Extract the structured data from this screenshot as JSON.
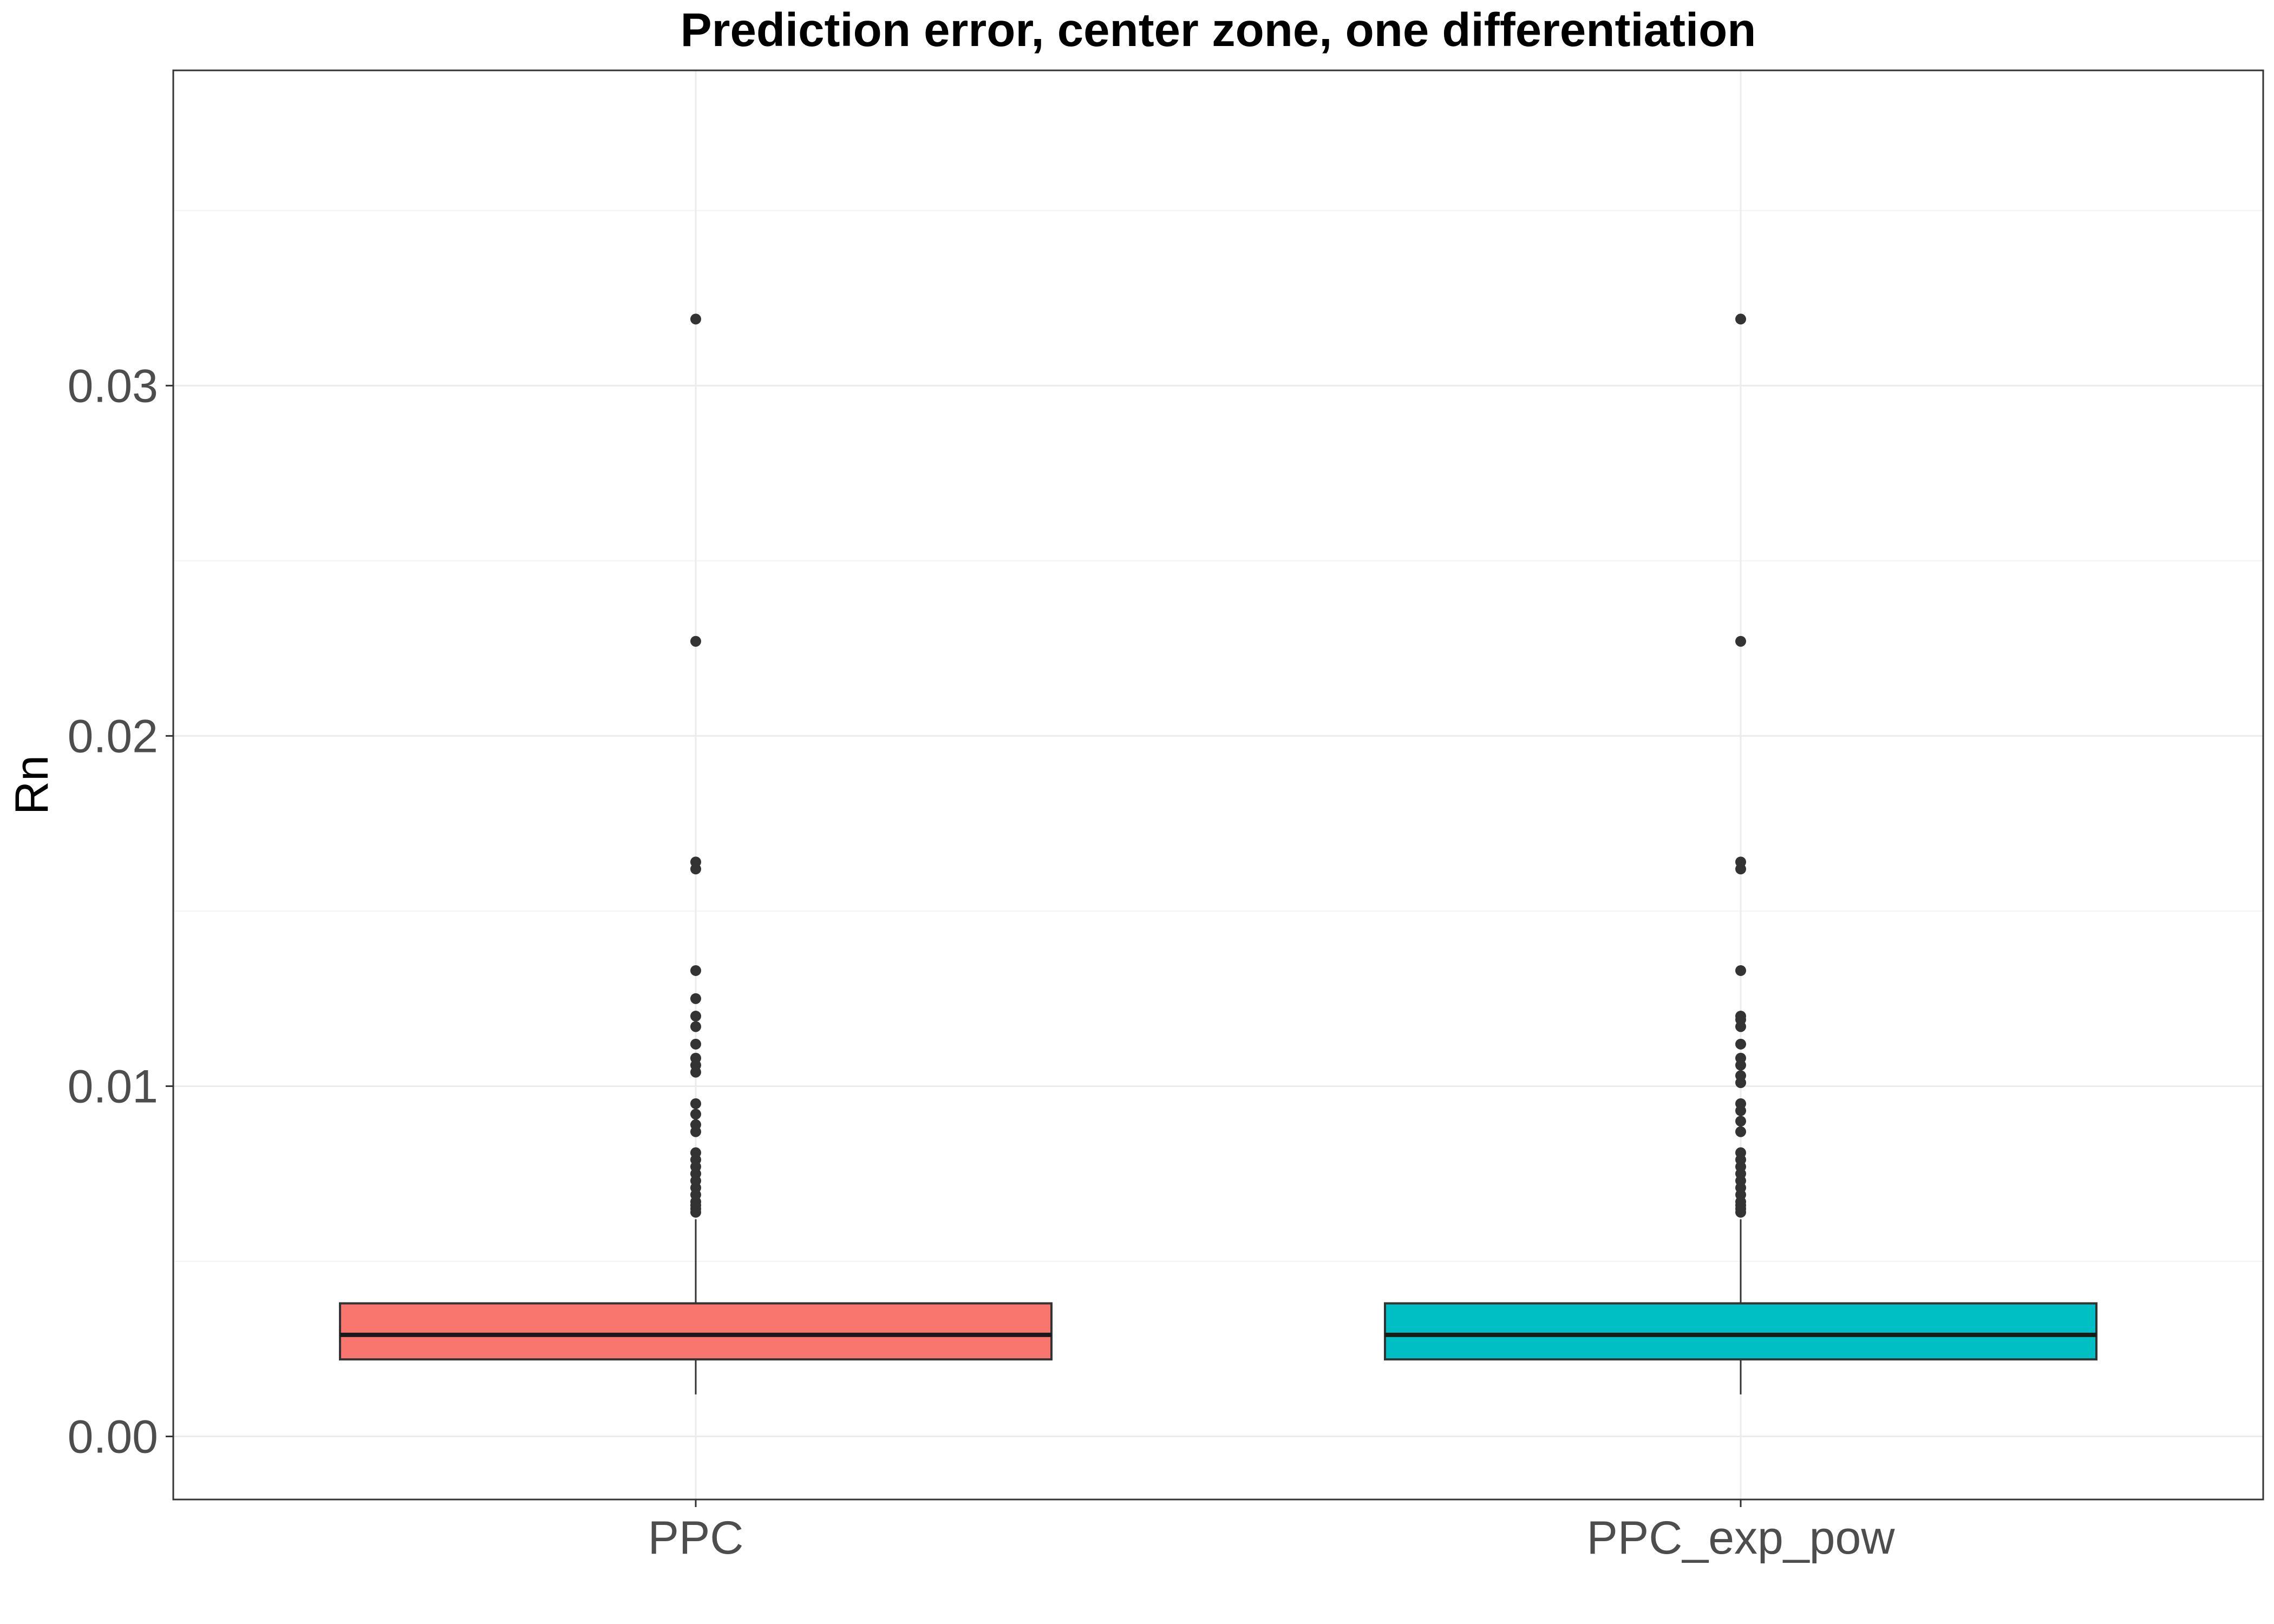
{
  "chart_data": {
    "type": "box",
    "title": "Prediction error, center zone, one differentiation",
    "xlabel": "",
    "ylabel": "Rn",
    "categories": [
      "PPC",
      "PPC_exp_pow"
    ],
    "ylim": [
      -0.0018,
      0.039
    ],
    "y_ticks": [
      0.0,
      0.01,
      0.02,
      0.03
    ],
    "y_tick_labels": [
      "0.00",
      "0.01",
      "0.02",
      "0.03"
    ],
    "grid": true,
    "legend": "none",
    "series": [
      {
        "category": "PPC",
        "color": "#F8766D",
        "whisker_low": 0.0012,
        "q1": 0.0022,
        "median": 0.0029,
        "q3": 0.0038,
        "whisker_high": 0.0062,
        "outliers": [
          0.0319,
          0.0227,
          0.0164,
          0.0162,
          0.0133,
          0.0125,
          0.012,
          0.0117,
          0.0112,
          0.0108,
          0.0106,
          0.0104,
          0.0095,
          0.0092,
          0.0089,
          0.0087,
          0.0081,
          0.0079,
          0.0077,
          0.0075,
          0.0073,
          0.0071,
          0.0069,
          0.0067,
          0.0066,
          0.0065,
          0.0064
        ]
      },
      {
        "category": "PPC_exp_pow",
        "color": "#00BFC4",
        "whisker_low": 0.0012,
        "q1": 0.0022,
        "median": 0.0029,
        "q3": 0.0038,
        "whisker_high": 0.0062,
        "outliers": [
          0.0319,
          0.0227,
          0.0164,
          0.0162,
          0.0133,
          0.012,
          0.0119,
          0.0117,
          0.0112,
          0.0108,
          0.0106,
          0.0103,
          0.0101,
          0.0095,
          0.0093,
          0.009,
          0.0087,
          0.0081,
          0.0079,
          0.0077,
          0.0075,
          0.0073,
          0.0071,
          0.0069,
          0.0067,
          0.0066,
          0.0065,
          0.0064
        ]
      }
    ],
    "colors": {
      "panel_border": "#333333",
      "grid_major": "#ebebeb",
      "grid_minor": "#f4f4f4",
      "box_outline": "#333333",
      "median_line": "#1a1a1a",
      "point": "#333333"
    }
  }
}
